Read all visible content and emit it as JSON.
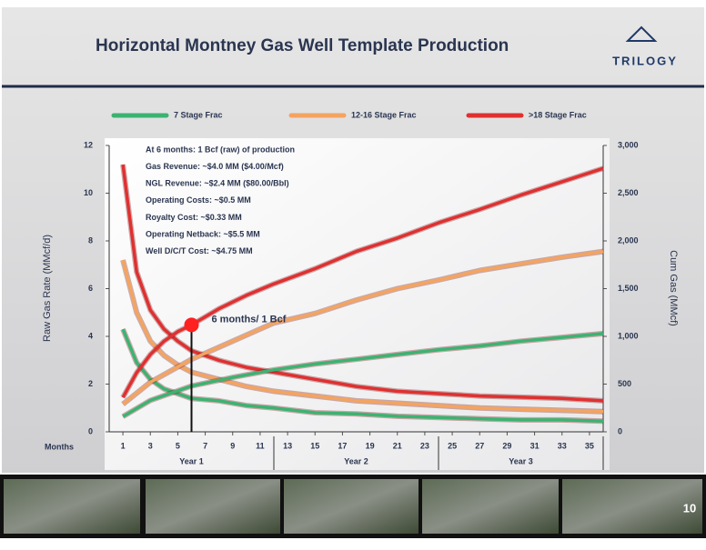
{
  "header": {
    "title": "Horizontal Montney Gas Well Template Production",
    "logo": "TRILOGY",
    "page_number": "10"
  },
  "chart_data": {
    "type": "line",
    "ylabel": "Raw Gas Rate (MMcf/d)",
    "y2label": "Cum Gas (MMcf)",
    "xlabel": "Months",
    "x_groups": [
      "Year 1",
      "Year 2",
      "Year 3"
    ],
    "xlim": [
      0,
      36
    ],
    "xticks": [
      1,
      3,
      5,
      7,
      9,
      11,
      13,
      15,
      17,
      19,
      21,
      23,
      25,
      27,
      29,
      31,
      33,
      35
    ],
    "ylim": [
      0,
      12
    ],
    "yticks": [
      0,
      2,
      4,
      6,
      8,
      10,
      12
    ],
    "y2lim": [
      0,
      3000
    ],
    "y2ticks": [
      0,
      500,
      {
        "value": 1000,
        "label": "1,000"
      },
      {
        "value": 1500,
        "label": "1,500"
      },
      {
        "value": 2000,
        "label": "2,000"
      },
      {
        "value": 2500,
        "label": "2,500"
      },
      {
        "value": 3000,
        "label": "3,000"
      }
    ],
    "legend": "top",
    "series": [
      {
        "name": "7 Stage Frac",
        "color": "#3cb371",
        "x": [
          1,
          2,
          3,
          4,
          5,
          6,
          8,
          10,
          12,
          15,
          18,
          21,
          24,
          27,
          30,
          33,
          36
        ],
        "values": [
          4.3,
          2.9,
          2.2,
          1.8,
          1.6,
          1.4,
          1.3,
          1.1,
          1.0,
          0.8,
          0.75,
          0.65,
          0.6,
          0.55,
          0.5,
          0.5,
          0.45
        ]
      },
      {
        "name": "12-16 Stage Frac",
        "color": "#f4a460",
        "x": [
          1,
          2,
          3,
          4,
          5,
          6,
          8,
          10,
          12,
          15,
          18,
          21,
          24,
          27,
          30,
          33,
          36
        ],
        "values": [
          7.2,
          5.0,
          3.8,
          3.2,
          2.8,
          2.5,
          2.2,
          1.9,
          1.7,
          1.5,
          1.3,
          1.2,
          1.1,
          1.0,
          0.95,
          0.9,
          0.85
        ]
      },
      {
        "name": ">18 Stage Frac",
        "color": "#e03030",
        "x": [
          1,
          2,
          3,
          4,
          5,
          6,
          8,
          10,
          12,
          15,
          18,
          21,
          24,
          27,
          30,
          33,
          36
        ],
        "values": [
          11.2,
          6.7,
          5.1,
          4.3,
          3.8,
          3.4,
          3.0,
          2.7,
          2.5,
          2.2,
          1.9,
          1.7,
          1.6,
          1.5,
          1.45,
          1.4,
          1.3
        ]
      },
      {
        "color": "#3cb371",
        "axis": "y2",
        "x": [
          1,
          3,
          6,
          9,
          12,
          15,
          18,
          21,
          24,
          27,
          30,
          33,
          36
        ],
        "values": [
          160,
          330,
          480,
          570,
          650,
          710,
          760,
          810,
          860,
          900,
          950,
          990,
          1030
        ]
      },
      {
        "color": "#f4a460",
        "axis": "y2",
        "x": [
          1,
          3,
          6,
          9,
          12,
          15,
          18,
          21,
          24,
          27,
          30,
          33,
          36
        ],
        "values": [
          290,
          520,
          760,
          950,
          1140,
          1240,
          1380,
          1500,
          1590,
          1690,
          1760,
          1830,
          1890
        ]
      },
      {
        "color": "#e03030",
        "axis": "y2",
        "x": [
          1,
          2,
          3,
          4,
          5,
          6,
          8,
          10,
          12,
          15,
          18,
          21,
          24,
          27,
          30,
          33,
          36
        ],
        "values": [
          360,
          620,
          810,
          950,
          1050,
          1120,
          1290,
          1430,
          1550,
          1710,
          1890,
          2030,
          2190,
          2330,
          2480,
          2620,
          2760
        ]
      }
    ],
    "notes": [
      "At 6 months: 1 Bcf (raw) of production",
      "Gas Revenue: ~$4.0 MM ($4.00/Mcf)",
      "NGL Revenue: ~$2.4 MM ($80.00/Bbl)",
      "Operating Costs: ~$0.5 MM",
      "Royalty Cost: ~$0.33 MM",
      "Operating Netback: ~$5.5 MM",
      "Well D/C/T Cost: ~$4.75 MM"
    ],
    "marker": {
      "text": "6 months/ 1 Bcf",
      "x": 6,
      "y2": 1120,
      "color": "#ff2020"
    }
  }
}
